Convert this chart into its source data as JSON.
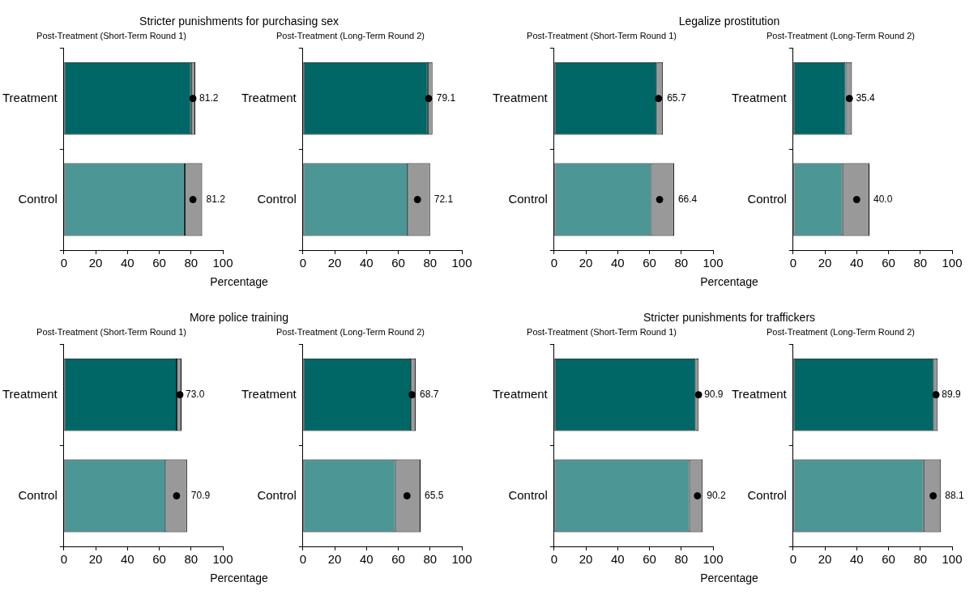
{
  "chart_data": [
    {
      "type": "bar",
      "orientation": "horizontal",
      "stacked": true,
      "title": "Stricter punishments for purchasing sex",
      "subtitle": "Post-Treatment (Short-Term Round 1)",
      "xlabel": "Percentage",
      "categories": [
        "Treatment",
        "Control"
      ],
      "xlim": [
        0,
        100
      ],
      "xticks": [
        0,
        20,
        40,
        60,
        80,
        100
      ],
      "series": [
        {
          "colors": [
            "#006666",
            "#4d9696"
          ],
          "values": [
            80,
            76
          ]
        },
        {
          "color": "#999999",
          "values": [
            2.7,
            11
          ]
        },
        {
          "type": "scatter",
          "color": "#000000",
          "x": [
            "Treatment",
            "Control"
          ],
          "values": [
            81.2,
            81.2
          ],
          "value_labels": [
            "81.2",
            "81.2"
          ]
        }
      ]
    },
    {
      "type": "bar",
      "orientation": "horizontal",
      "stacked": true,
      "subtitle": "Post-Treatment (Long-Term Round 2)",
      "categories": [
        "Treatment",
        "Control"
      ],
      "xlim": [
        0,
        100
      ],
      "xticks": [
        0,
        20,
        40,
        60,
        80,
        100
      ],
      "series": [
        {
          "colors": [
            "#006666",
            "#4d9696"
          ],
          "values": [
            78.5,
            66
          ]
        },
        {
          "color": "#999999",
          "values": [
            3,
            14
          ]
        },
        {
          "type": "scatter",
          "color": "#000000",
          "x": [
            "Treatment",
            "Control"
          ],
          "values": [
            79.1,
            72.1
          ],
          "value_labels": [
            "79.1",
            "72.1"
          ]
        }
      ]
    },
    {
      "type": "bar",
      "orientation": "horizontal",
      "stacked": true,
      "title": "Legalize prostitution",
      "subtitle": "Post-Treatment (Short-Term Round 1)",
      "xlabel": "Percentage",
      "categories": [
        "Treatment",
        "Control"
      ],
      "xlim": [
        0,
        100
      ],
      "xticks": [
        0,
        20,
        40,
        60,
        80,
        100
      ],
      "series": [
        {
          "colors": [
            "#006666",
            "#4d9696"
          ],
          "values": [
            64.5,
            61
          ]
        },
        {
          "color": "#999999",
          "values": [
            4,
            14.5
          ]
        },
        {
          "type": "scatter",
          "color": "#000000",
          "x": [
            "Treatment",
            "Control"
          ],
          "values": [
            65.7,
            66.4
          ],
          "value_labels": [
            "65.7",
            "66.4"
          ]
        }
      ]
    },
    {
      "type": "bar",
      "orientation": "horizontal",
      "stacked": true,
      "subtitle": "Post-Treatment (Long-Term Round 2)",
      "categories": [
        "Treatment",
        "Control"
      ],
      "xlim": [
        0,
        100
      ],
      "xticks": [
        0,
        20,
        40,
        60,
        80,
        100
      ],
      "series": [
        {
          "colors": [
            "#006666",
            "#4d9696"
          ],
          "values": [
            33,
            31
          ]
        },
        {
          "color": "#999999",
          "values": [
            4,
            17
          ]
        },
        {
          "type": "scatter",
          "color": "#000000",
          "x": [
            "Treatment",
            "Control"
          ],
          "values": [
            35.4,
            40.0
          ],
          "value_labels": [
            "35.4",
            "40.0"
          ]
        }
      ]
    },
    {
      "type": "bar",
      "orientation": "horizontal",
      "stacked": true,
      "title": "More police training",
      "subtitle": "Post-Treatment (Short-Term Round 1)",
      "xlabel": "Percentage",
      "categories": [
        "Treatment",
        "Control"
      ],
      "xlim": [
        0,
        100
      ],
      "xticks": [
        0,
        20,
        40,
        60,
        80,
        100
      ],
      "series": [
        {
          "colors": [
            "#006666",
            "#4d9696"
          ],
          "values": [
            71,
            64
          ]
        },
        {
          "color": "#999999",
          "values": [
            3,
            13.5
          ]
        },
        {
          "type": "scatter",
          "color": "#000000",
          "x": [
            "Treatment",
            "Control"
          ],
          "values": [
            73.0,
            70.9
          ],
          "value_labels": [
            "73.0",
            "70.9"
          ]
        }
      ]
    },
    {
      "type": "bar",
      "orientation": "horizontal",
      "stacked": true,
      "subtitle": "Post-Treatment (Long-Term Round 2)",
      "categories": [
        "Treatment",
        "Control"
      ],
      "xlim": [
        0,
        100
      ],
      "xticks": [
        0,
        20,
        40,
        60,
        80,
        100
      ],
      "series": [
        {
          "colors": [
            "#006666",
            "#4d9696"
          ],
          "values": [
            68,
            58
          ]
        },
        {
          "color": "#999999",
          "values": [
            3,
            16
          ]
        },
        {
          "type": "scatter",
          "color": "#000000",
          "x": [
            "Treatment",
            "Control"
          ],
          "values": [
            68.7,
            65.5
          ],
          "value_labels": [
            "68.7",
            "65.5"
          ]
        }
      ]
    },
    {
      "type": "bar",
      "orientation": "horizontal",
      "stacked": true,
      "title": "Stricter punishments for traffickers",
      "subtitle": "Post-Treatment (Short-Term Round 1)",
      "xlabel": "Percentage",
      "categories": [
        "Treatment",
        "Control"
      ],
      "xlim": [
        0,
        100
      ],
      "xticks": [
        0,
        20,
        40,
        60,
        80,
        100
      ],
      "series": [
        {
          "colors": [
            "#006666",
            "#4d9696"
          ],
          "values": [
            89,
            85
          ]
        },
        {
          "color": "#999999",
          "values": [
            2,
            8.5
          ]
        },
        {
          "type": "scatter",
          "color": "#000000",
          "x": [
            "Treatment",
            "Control"
          ],
          "values": [
            90.9,
            90.2
          ],
          "value_labels": [
            "90.9",
            "90.2"
          ]
        }
      ]
    },
    {
      "type": "bar",
      "orientation": "horizontal",
      "stacked": true,
      "subtitle": "Post-Treatment (Long-Term Round 2)",
      "categories": [
        "Treatment",
        "Control"
      ],
      "xlim": [
        0,
        100
      ],
      "xticks": [
        0,
        20,
        40,
        60,
        80,
        100
      ],
      "series": [
        {
          "colors": [
            "#006666",
            "#4d9696"
          ],
          "values": [
            88.5,
            82
          ]
        },
        {
          "color": "#999999",
          "values": [
            2.5,
            11
          ]
        },
        {
          "type": "scatter",
          "color": "#000000",
          "x": [
            "Treatment",
            "Control"
          ],
          "values": [
            89.9,
            88.1
          ],
          "value_labels": [
            "89.9",
            "88.1"
          ]
        }
      ]
    }
  ]
}
